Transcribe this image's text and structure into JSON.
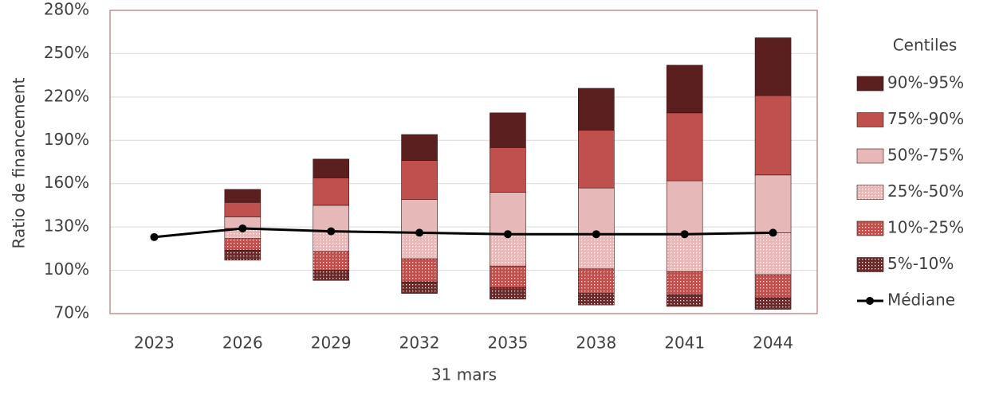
{
  "chart_data": {
    "type": "floating_stacked_bar",
    "x_label": "31 mars",
    "y_label": "Ratio de financement",
    "legend_title": "Centiles",
    "categories": [
      "2023",
      "2026",
      "2029",
      "2032",
      "2035",
      "2038",
      "2041",
      "2044"
    ],
    "ylim": [
      70,
      280
    ],
    "yticks": [
      {
        "value": 70,
        "label": "70%"
      },
      {
        "value": 100,
        "label": "100%"
      },
      {
        "value": 130,
        "label": "130%"
      },
      {
        "value": 160,
        "label": "160%"
      },
      {
        "value": 190,
        "label": "190%"
      },
      {
        "value": 220,
        "label": "220%"
      },
      {
        "value": 250,
        "label": "250%"
      },
      {
        "value": 280,
        "label": "280%"
      }
    ],
    "grid": true,
    "legend": "right",
    "series": [
      {
        "name": "5%-10%",
        "color": "#6b2a2a",
        "pattern": "dots",
        "values": [
          null,
          [
            107,
            114
          ],
          [
            93,
            100
          ],
          [
            84,
            92
          ],
          [
            80,
            88
          ],
          [
            76,
            84
          ],
          [
            75,
            83
          ],
          [
            73,
            81
          ]
        ]
      },
      {
        "name": "10%-25%",
        "color": "#c0504d",
        "pattern": "dots",
        "values": [
          null,
          [
            114,
            122
          ],
          [
            100,
            113
          ],
          [
            92,
            108
          ],
          [
            88,
            103
          ],
          [
            84,
            101
          ],
          [
            83,
            99
          ],
          [
            81,
            97
          ]
        ]
      },
      {
        "name": "25%-50%",
        "color": "#e6b8b7",
        "pattern": "dots",
        "values": [
          null,
          [
            122,
            129
          ],
          [
            113,
            127
          ],
          [
            108,
            126
          ],
          [
            103,
            125
          ],
          [
            101,
            125
          ],
          [
            99,
            125
          ],
          [
            97,
            126
          ]
        ]
      },
      {
        "name": "50%-75%",
        "color": "#e6b8b7",
        "values": [
          null,
          [
            129,
            137
          ],
          [
            127,
            145
          ],
          [
            126,
            149
          ],
          [
            125,
            154
          ],
          [
            125,
            157
          ],
          [
            125,
            162
          ],
          [
            126,
            166
          ]
        ]
      },
      {
        "name": "75%-90%",
        "color": "#c0504d",
        "values": [
          null,
          [
            137,
            147
          ],
          [
            145,
            164
          ],
          [
            149,
            176
          ],
          [
            154,
            185
          ],
          [
            157,
            197
          ],
          [
            162,
            209
          ],
          [
            166,
            221
          ]
        ]
      },
      {
        "name": "90%-95%",
        "color": "#5c1f1f",
        "values": [
          null,
          [
            147,
            156
          ],
          [
            164,
            177
          ],
          [
            176,
            194
          ],
          [
            185,
            209
          ],
          [
            197,
            226
          ],
          [
            209,
            242
          ],
          [
            221,
            261
          ]
        ]
      },
      {
        "name": "Médiane",
        "type": "line",
        "color": "#000000",
        "values": [
          123,
          129,
          127,
          126,
          125,
          125,
          125,
          126
        ]
      }
    ]
  }
}
